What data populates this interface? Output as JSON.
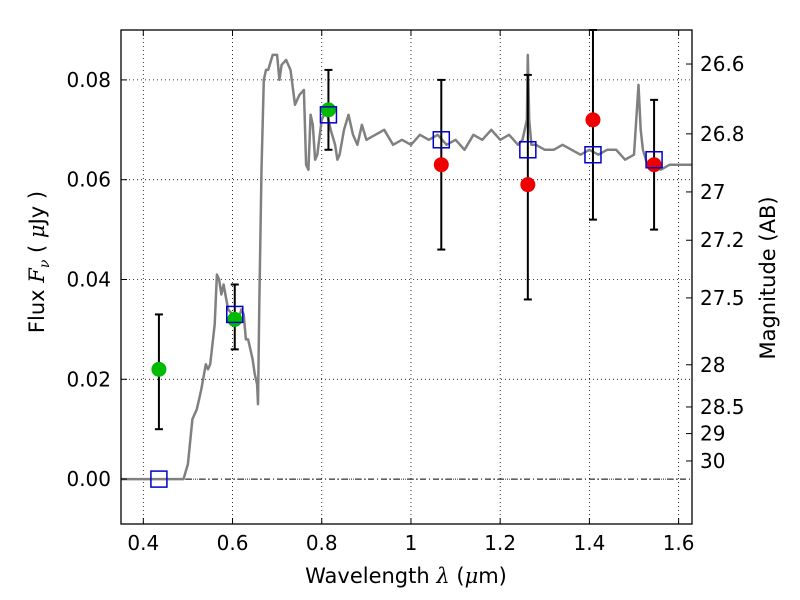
{
  "chart_data": {
    "type": "scatter",
    "xlabel": "Wavelength",
    "xlabel_symbol": "λ",
    "xlabel_units_pre": " (",
    "xlabel_units_mu": "μ",
    "xlabel_units_post": "m)",
    "ylabel": "Flux",
    "ylabel_symbol": "F",
    "ylabel_symbol_sub": "ν",
    "ylabel_units_pre": "( ",
    "ylabel_units_mu": "μ",
    "ylabel_units_post": "Jy )",
    "y2label": "Magnitude (AB)",
    "xlim": [
      0.35,
      1.63
    ],
    "ylim": [
      -0.009,
      0.09
    ],
    "x_ticks": [
      0.4,
      0.6,
      0.8,
      1.0,
      1.2,
      1.4,
      1.6
    ],
    "x_tick_labels": [
      "0.4",
      "0.6",
      "0.8",
      "1",
      "1.2",
      "1.4",
      "1.6"
    ],
    "y_ticks": [
      0.0,
      0.02,
      0.04,
      0.06,
      0.08
    ],
    "y_tick_labels": [
      "0.00",
      "0.02",
      "0.04",
      "0.06",
      "0.08"
    ],
    "mag_ticks": [
      26.6,
      26.8,
      27,
      27.2,
      27.5,
      28,
      28.5,
      29,
      30
    ],
    "mag_tick_labels": [
      "26.6",
      "26.8",
      "27",
      "27.2",
      "27.5",
      "28",
      "28.5",
      "29",
      "30"
    ],
    "grid": true,
    "colors": {
      "model": "#808080",
      "green": "#00bb00",
      "red": "#ee0000",
      "square": "#0000cc",
      "errorbar": "#000000"
    },
    "series": [
      {
        "marker": "line",
        "color": "#808080",
        "x": [
          0.35,
          0.48,
          0.49,
          0.5,
          0.51,
          0.52,
          0.525,
          0.53,
          0.54,
          0.545,
          0.55,
          0.56,
          0.565,
          0.57,
          0.575,
          0.58,
          0.59,
          0.6,
          0.61,
          0.62,
          0.625,
          0.63,
          0.635,
          0.64,
          0.645,
          0.65,
          0.655,
          0.657,
          0.66,
          0.665,
          0.67,
          0.675,
          0.68,
          0.69,
          0.7,
          0.705,
          0.71,
          0.72,
          0.73,
          0.74,
          0.75,
          0.76,
          0.765,
          0.77,
          0.775,
          0.78,
          0.785,
          0.79,
          0.8,
          0.81,
          0.82,
          0.83,
          0.835,
          0.84,
          0.85,
          0.86,
          0.87,
          0.88,
          0.89,
          0.9,
          0.92,
          0.94,
          0.96,
          0.98,
          1.0,
          1.02,
          1.04,
          1.06,
          1.08,
          1.1,
          1.12,
          1.14,
          1.16,
          1.18,
          1.2,
          1.22,
          1.24,
          1.25,
          1.26,
          1.262,
          1.265,
          1.27,
          1.28,
          1.3,
          1.32,
          1.34,
          1.36,
          1.38,
          1.4,
          1.42,
          1.44,
          1.46,
          1.48,
          1.5,
          1.51,
          1.515,
          1.52,
          1.53,
          1.54,
          1.56,
          1.58,
          1.6,
          1.63
        ],
        "y": [
          0.0,
          0.0,
          0.0,
          0.003,
          0.012,
          0.014,
          0.016,
          0.018,
          0.023,
          0.022,
          0.023,
          0.031,
          0.041,
          0.04,
          0.037,
          0.039,
          0.034,
          0.033,
          0.031,
          0.034,
          0.033,
          0.028,
          0.028,
          0.026,
          0.024,
          0.021,
          0.019,
          0.015,
          0.035,
          0.062,
          0.08,
          0.082,
          0.082,
          0.085,
          0.085,
          0.08,
          0.083,
          0.084,
          0.082,
          0.075,
          0.077,
          0.078,
          0.063,
          0.062,
          0.073,
          0.071,
          0.064,
          0.065,
          0.072,
          0.074,
          0.07,
          0.067,
          0.064,
          0.065,
          0.07,
          0.073,
          0.069,
          0.067,
          0.071,
          0.068,
          0.069,
          0.07,
          0.067,
          0.068,
          0.067,
          0.069,
          0.068,
          0.069,
          0.067,
          0.068,
          0.066,
          0.069,
          0.068,
          0.07,
          0.068,
          0.069,
          0.067,
          0.068,
          0.072,
          0.085,
          0.072,
          0.067,
          0.067,
          0.066,
          0.066,
          0.067,
          0.066,
          0.065,
          0.066,
          0.065,
          0.066,
          0.066,
          0.064,
          0.065,
          0.079,
          0.07,
          0.066,
          0.063,
          0.063,
          0.062,
          0.063,
          0.063,
          0.063
        ]
      },
      {
        "marker": "errorbar",
        "color": "#000000",
        "x": [
          0.435,
          0.605,
          0.815,
          1.068,
          1.262,
          1.408,
          1.545
        ],
        "ylow": [
          0.01,
          0.026,
          0.066,
          0.046,
          0.036,
          0.052,
          0.05
        ],
        "yhigh": [
          0.033,
          0.039,
          0.082,
          0.08,
          0.081,
          0.09,
          0.076
        ]
      },
      {
        "marker": "circle",
        "color": "#00bb00",
        "x": [
          0.435,
          0.605,
          0.815
        ],
        "y": [
          0.022,
          0.032,
          0.074
        ]
      },
      {
        "marker": "circle",
        "color": "#ee0000",
        "x": [
          1.068,
          1.262,
          1.408,
          1.545
        ],
        "y": [
          0.063,
          0.059,
          0.072,
          0.063
        ]
      },
      {
        "marker": "open-square",
        "color": "#0000cc",
        "x": [
          0.435,
          0.605,
          0.815,
          1.068,
          1.262,
          1.408,
          1.545
        ],
        "y": [
          0.0,
          0.033,
          0.073,
          0.068,
          0.066,
          0.065,
          0.064
        ]
      }
    ]
  }
}
